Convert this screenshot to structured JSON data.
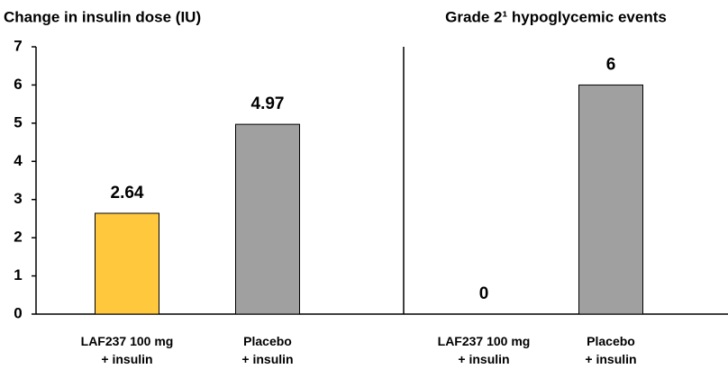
{
  "chart_data": [
    {
      "type": "bar",
      "title": "Change in insulin dose (IU)",
      "categories": [
        "LAF237 100 mg\n+ insulin",
        "Placebo\n+ insulin"
      ],
      "values": [
        2.64,
        4.97
      ],
      "colors": [
        "#ffc83d",
        "#a0a0a0"
      ],
      "ylim": [
        0,
        7
      ],
      "yticks": [
        0,
        1,
        2,
        3,
        4,
        5,
        6,
        7
      ]
    },
    {
      "type": "bar",
      "title": "Grade 2¹ hypoglycemic events",
      "categories": [
        "LAF237 100 mg\n+ insulin",
        "Placebo\n+ insulin"
      ],
      "values": [
        0,
        6
      ],
      "colors": [
        "#a0a0a0",
        "#a0a0a0"
      ],
      "ylim": [
        0,
        7
      ]
    }
  ]
}
